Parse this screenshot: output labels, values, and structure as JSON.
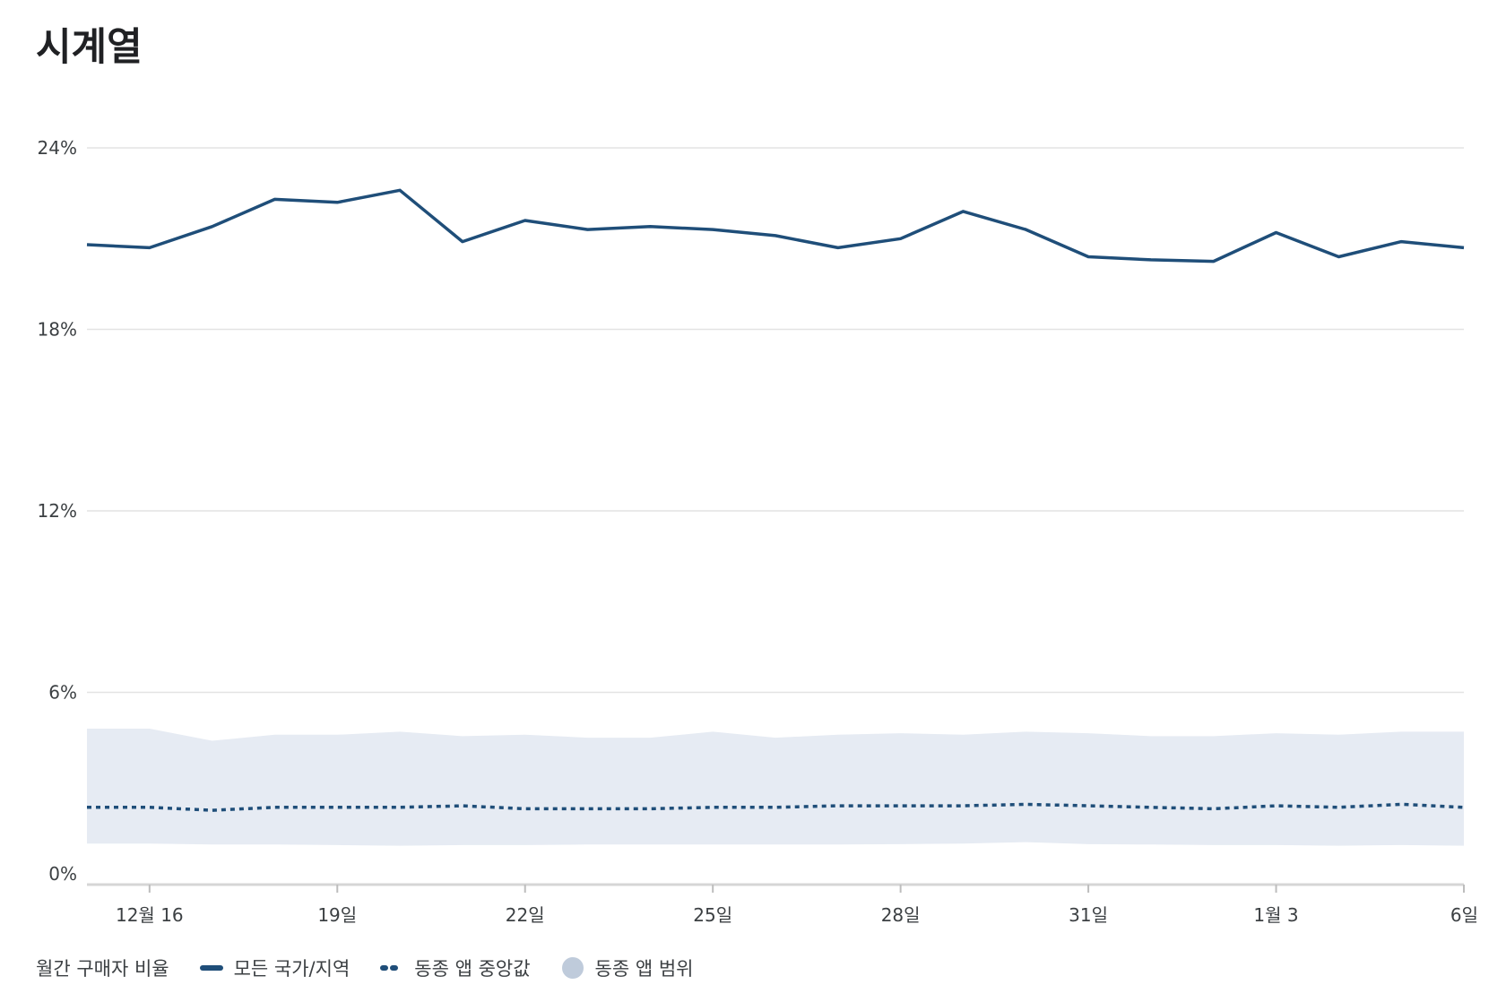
{
  "title": "시계열",
  "legend": {
    "title": "월간 구매자 비율",
    "items": [
      {
        "label": "모든 국가/지역",
        "kind": "solid"
      },
      {
        "label": "동종 앱 중앙값",
        "kind": "dotted"
      },
      {
        "label": "동종 앱 범위",
        "kind": "area"
      }
    ]
  },
  "colors": {
    "primary": "#1f4e79",
    "range": "#e6ebf3",
    "range_legend": "#bfcbdb",
    "grid": "#e3e3e3",
    "axis": "#d6d6d6"
  },
  "chart_data": {
    "type": "line",
    "title": "",
    "xlabel": "",
    "ylabel": "",
    "ylim": [
      0,
      24
    ],
    "y_ticks": [
      0,
      6,
      12,
      18,
      24
    ],
    "y_tick_labels": [
      "0%",
      "6%",
      "12%",
      "18%",
      "24%"
    ],
    "y_unit": "%",
    "grid": true,
    "legend_placement": "bottom-left",
    "x": [
      "12-15",
      "12-16",
      "12-17",
      "12-18",
      "12-19",
      "12-20",
      "12-21",
      "12-22",
      "12-23",
      "12-24",
      "12-25",
      "12-26",
      "12-27",
      "12-28",
      "12-29",
      "12-30",
      "12-31",
      "01-01",
      "01-02",
      "01-03",
      "01-04",
      "01-05",
      "01-06"
    ],
    "x_tick_labels": [
      "12월 16",
      "19일",
      "22일",
      "25일",
      "28일",
      "31일",
      "1월 3",
      "6일"
    ],
    "x_tick_index": [
      1,
      4,
      7,
      10,
      13,
      16,
      19,
      22
    ],
    "series": [
      {
        "name": "모든 국가/지역",
        "style": "solid",
        "values": [
          20.8,
          20.7,
          21.4,
          22.3,
          22.2,
          22.6,
          20.9,
          21.6,
          21.3,
          21.4,
          21.3,
          21.1,
          20.7,
          21.0,
          21.9,
          21.3,
          20.4,
          20.3,
          20.25,
          21.2,
          20.4,
          20.9,
          20.7
        ]
      },
      {
        "name": "동종 앱 중앙값",
        "style": "dotted",
        "values": [
          2.2,
          2.2,
          2.1,
          2.2,
          2.2,
          2.2,
          2.25,
          2.15,
          2.15,
          2.15,
          2.2,
          2.2,
          2.25,
          2.25,
          2.25,
          2.3,
          2.25,
          2.2,
          2.15,
          2.25,
          2.2,
          2.3,
          2.2
        ]
      },
      {
        "name": "동종 앱 범위",
        "style": "band",
        "upper": [
          4.8,
          4.8,
          4.4,
          4.6,
          4.6,
          4.7,
          4.55,
          4.6,
          4.5,
          4.5,
          4.7,
          4.5,
          4.6,
          4.65,
          4.6,
          4.7,
          4.65,
          4.55,
          4.55,
          4.65,
          4.6,
          4.7,
          4.7
        ],
        "lower": [
          1.0,
          1.0,
          0.97,
          0.97,
          0.95,
          0.93,
          0.95,
          0.95,
          0.97,
          0.97,
          0.97,
          0.97,
          0.97,
          0.98,
          1.0,
          1.05,
          0.98,
          0.97,
          0.95,
          0.95,
          0.93,
          0.95,
          0.93
        ]
      }
    ]
  }
}
